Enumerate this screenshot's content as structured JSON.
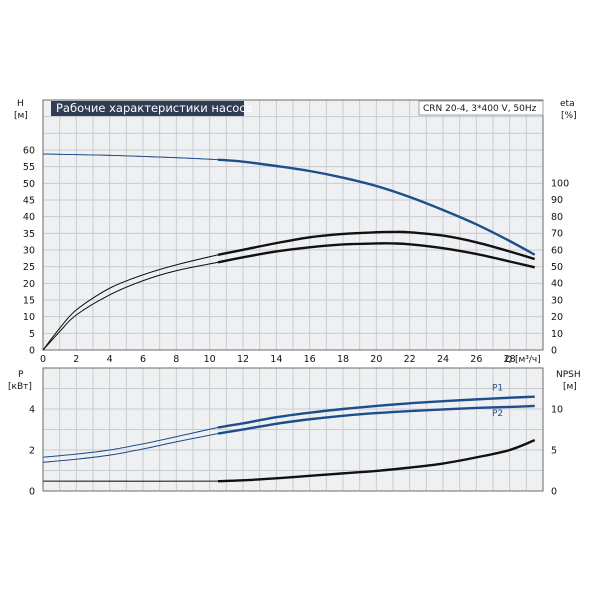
{
  "chart_data": [
    {
      "type": "line",
      "title": "Рабочие характеристики насоса",
      "model": "CRN 20-4, 3*400 V, 50Hz",
      "xlabel": "Q [м³/ч]",
      "ylabel_left": "H",
      "ylabel_left_unit": "[м]",
      "ylabel_right": "eta",
      "ylabel_right_unit": "[%]",
      "xlim": [
        0,
        30
      ],
      "xticks": [
        0,
        2,
        4,
        6,
        8,
        10,
        12,
        14,
        16,
        18,
        20,
        22,
        24,
        26,
        28
      ],
      "ylim_left": [
        0,
        60
      ],
      "yticks_left": [
        0,
        5,
        10,
        15,
        20,
        25,
        30,
        35,
        40,
        45,
        50,
        55,
        60
      ],
      "ylim_right": [
        0,
        120
      ],
      "yticks_right": [
        0,
        10,
        20,
        30,
        40,
        50,
        60,
        70,
        80,
        90,
        100
      ],
      "grid": true,
      "series": [
        {
          "axis": "left",
          "color": "#1f4e8c",
          "x": [
            0,
            4,
            8,
            10.5,
            12,
            14,
            16,
            18,
            20,
            22,
            24,
            26,
            28,
            29.5
          ],
          "y": [
            58.8,
            58.4,
            57.7,
            57.1,
            56.5,
            55.2,
            53.7,
            51.7,
            49.2,
            45.9,
            42.0,
            37.7,
            32.7,
            28.6
          ]
        },
        {
          "axis": "right",
          "color": "#111111",
          "x": [
            0,
            1,
            2,
            4,
            6,
            8,
            10.5,
            12,
            14,
            16,
            18,
            20,
            21,
            22,
            24,
            26,
            28,
            29.5
          ],
          "y": [
            0,
            13,
            24,
            37,
            45,
            51,
            57,
            60,
            64,
            67.5,
            69.5,
            70.5,
            70.7,
            70.5,
            68.5,
            64.5,
            59,
            54.5
          ]
        },
        {
          "axis": "right",
          "color": "#111111",
          "x": [
            0,
            1,
            2,
            4,
            6,
            8,
            10.5,
            12,
            14,
            16,
            18,
            20,
            21,
            22,
            24,
            26,
            28,
            29.5
          ],
          "y": [
            0,
            11,
            21,
            33,
            41.5,
            47.5,
            52.5,
            55.5,
            59,
            61.5,
            63.2,
            63.8,
            63.8,
            63.3,
            61,
            57.5,
            53,
            49.5
          ]
        }
      ]
    },
    {
      "type": "line",
      "ylabel_left": "P",
      "ylabel_left_unit": "[кВт]",
      "ylabel_right": "NPSH",
      "ylabel_right_unit": "[м]",
      "xlim": [
        0,
        30
      ],
      "ylim_left": [
        0,
        5
      ],
      "yticks_left": [
        0,
        2,
        4
      ],
      "ylim_right": [
        0,
        12
      ],
      "yticks_right": [
        0,
        5,
        10
      ],
      "grid": true,
      "series": [
        {
          "name": "P1",
          "axis": "left",
          "color": "#1f4e8c",
          "x": [
            0,
            2,
            4,
            6,
            8,
            10.5,
            12,
            14,
            16,
            18,
            20,
            22,
            24,
            26,
            28,
            29.5
          ],
          "y": [
            1.65,
            1.8,
            2.0,
            2.3,
            2.65,
            3.1,
            3.3,
            3.6,
            3.82,
            4.0,
            4.15,
            4.28,
            4.38,
            4.47,
            4.55,
            4.6
          ]
        },
        {
          "name": "P2",
          "axis": "left",
          "color": "#1f4e8c",
          "x": [
            0,
            2,
            4,
            6,
            8,
            10.5,
            12,
            14,
            16,
            18,
            20,
            22,
            24,
            26,
            28,
            29.5
          ],
          "y": [
            1.4,
            1.55,
            1.75,
            2.05,
            2.4,
            2.8,
            3.0,
            3.28,
            3.5,
            3.67,
            3.8,
            3.9,
            3.98,
            4.05,
            4.1,
            4.15
          ]
        },
        {
          "axis": "right",
          "color": "#111111",
          "x": [
            0,
            10.5,
            12,
            14,
            16,
            18,
            20,
            22,
            24,
            26,
            28,
            29.5
          ],
          "y": [
            1.2,
            1.2,
            1.3,
            1.55,
            1.85,
            2.15,
            2.45,
            2.85,
            3.35,
            4.1,
            5.0,
            6.2
          ]
        }
      ]
    }
  ]
}
